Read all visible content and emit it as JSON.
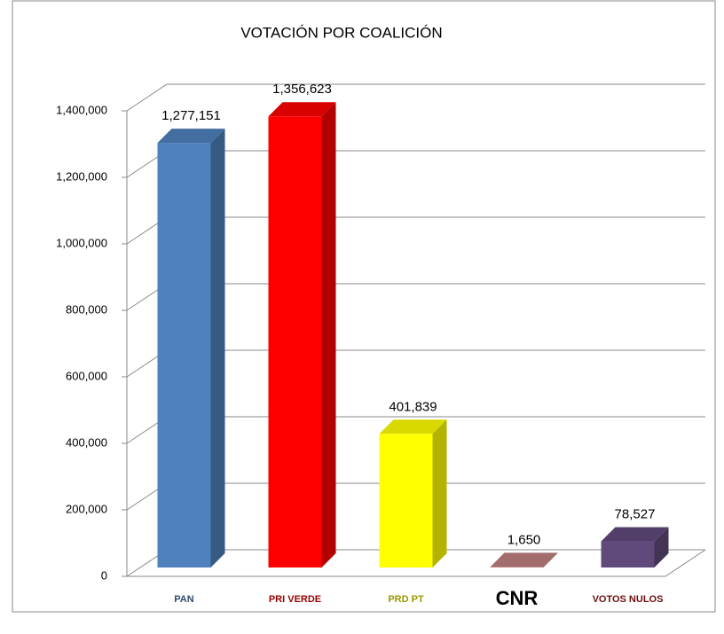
{
  "chart_data": {
    "type": "bar3d",
    "title": "VOTACIÓN POR COALICIÓN",
    "categories": [
      "PAN",
      "PRI VERDE",
      "PRD PT",
      "CNR",
      "VOTOS NULOS"
    ],
    "values": [
      1277151,
      1356623,
      401839,
      1650,
      78527
    ],
    "value_labels": [
      "1,277,151",
      "1,356,623",
      "401,839",
      "1,650",
      "78,527"
    ],
    "colors": [
      "#4f81bd",
      "#ff0000",
      "#ffff00",
      "#c08080",
      "#604a7b"
    ],
    "ylim": [
      0,
      1400000
    ],
    "yticks": [
      0,
      {
        "value": 200000,
        "label": "200,000"
      },
      {
        "value": 400000,
        "label": "400,000"
      },
      {
        "value": 600000,
        "label": "600,000"
      },
      {
        "value": 800000,
        "label": "800,000"
      },
      {
        "value": 1000000,
        "label": "1,000,000"
      },
      {
        "value": 1200000,
        "label": "1,200,000"
      },
      {
        "value": 1400000,
        "label": "1,400,000"
      }
    ],
    "grid": true
  }
}
